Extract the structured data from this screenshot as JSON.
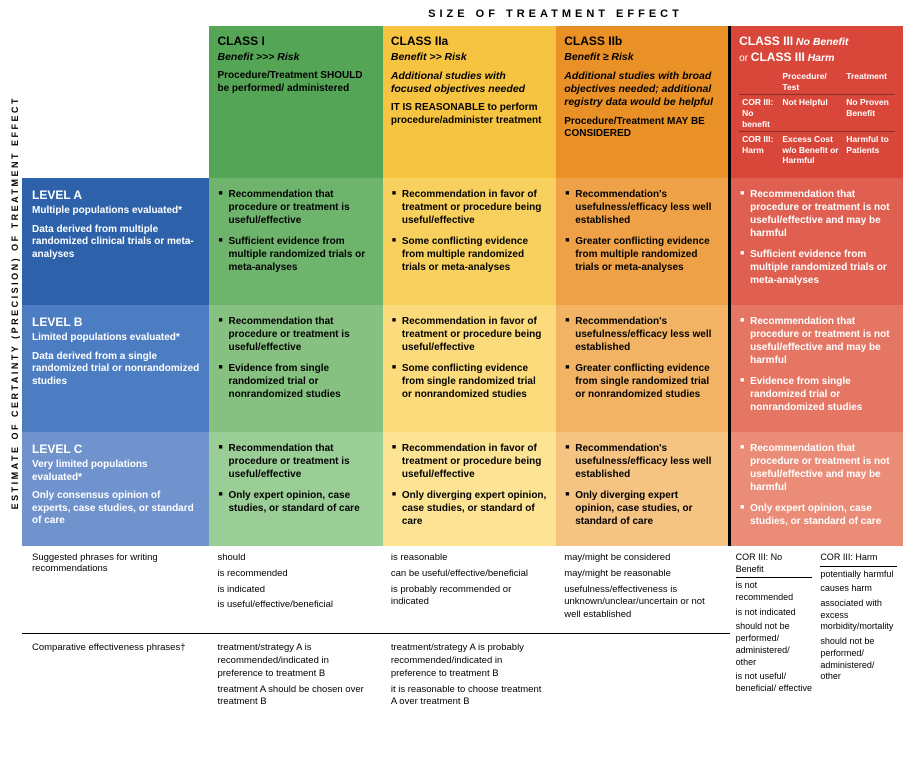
{
  "axes": {
    "top_title": "SIZE OF TREATMENT EFFECT",
    "left_title": "ESTIMATE OF CERTAINTY (PRECISION) OF TREATMENT EFFECT"
  },
  "colors": {
    "class1_header": "#55a556",
    "class2a_header": "#f6c441",
    "class2b_header": "#e99026",
    "class3_header": "#d9473b",
    "level_a": "#2d62ab",
    "level_b": "#4c7cc1",
    "level_c": "#7093cd"
  },
  "classes": {
    "c1": {
      "title": "CLASS I",
      "relation": "Benefit >>> Risk",
      "body": "Procedure/Treatment <b>SHOULD</b> be performed/ administered"
    },
    "c2a": {
      "title": "CLASS IIa",
      "relation": "Benefit >> Risk",
      "extra": "Additional studies with focused objectives needed",
      "body": "<b>IT IS REASONABLE</b> to perform procedure/administer treatment"
    },
    "c2b": {
      "title": "CLASS IIb",
      "relation": "Benefit ≥ Risk",
      "extra": "Additional studies with broad objectives needed; additional registry data would be helpful",
      "body": "Procedure/Treatment <b>MAY BE CONSIDERED</b>"
    },
    "c3": {
      "title_a": "CLASS III",
      "title_a_suffix": "No Benefit",
      "or": "or",
      "title_b": "CLASS III",
      "title_b_suffix": "Harm",
      "sub": {
        "h_proc": "Procedure/ Test",
        "h_treat": "Treatment",
        "r1_label": "COR III: No benefit",
        "r1_proc": "Not Helpful",
        "r1_treat": "No Proven Benefit",
        "r2_label": "COR III: Harm",
        "r2_proc": "Excess Cost w/o Benefit or Harmful",
        "r2_treat": "Harmful to Patients"
      }
    }
  },
  "levels": {
    "a": {
      "title": "LEVEL A",
      "sub": "Multiple populations evaluated*",
      "desc": "Data derived from multiple randomized clinical trials or meta-analyses"
    },
    "b": {
      "title": "LEVEL B",
      "sub": "Limited populations evaluated*",
      "desc": "Data derived from a single randomized trial or nonrandomized studies"
    },
    "c": {
      "title": "LEVEL C",
      "sub": "Very limited populations evaluated*",
      "desc": "Only consensus opinion of experts, case studies, or standard of care"
    }
  },
  "cells": {
    "a": {
      "c1": [
        "Recommendation that procedure or treatment is useful/effective",
        "Sufficient evidence from multiple randomized trials or meta-analyses"
      ],
      "c2a": [
        "Recommendation in favor of treatment or procedure being useful/effective",
        "Some conflicting evidence from multiple randomized trials or meta-analyses"
      ],
      "c2b": [
        "Recommendation's usefulness/efficacy less well established",
        "Greater conflicting evidence from multiple randomized trials or meta-analyses"
      ],
      "c3": [
        "Recommendation that procedure or treatment is not useful/effective and may be harmful",
        "Sufficient evidence from multiple randomized trials or meta-analyses"
      ]
    },
    "b": {
      "c1": [
        "Recommendation that procedure or treatment is useful/effective",
        "Evidence from single randomized trial or nonrandomized studies"
      ],
      "c2a": [
        "Recommendation in favor of treatment or procedure being useful/effective",
        "Some conflicting evidence from single randomized trial or nonrandomized studies"
      ],
      "c2b": [
        "Recommendation's usefulness/efficacy less well established",
        "Greater conflicting evidence from single randomized trial or nonrandomized studies"
      ],
      "c3": [
        "Recommendation that procedure or treatment is not useful/effective and may be harmful",
        "Evidence from single randomized trial or nonrandomized studies"
      ]
    },
    "c": {
      "c1": [
        "Recommendation that procedure or treatment is useful/effective",
        "Only expert opinion, case studies, or standard of care"
      ],
      "c2a": [
        "Recommendation in favor of treatment or procedure being useful/effective",
        "Only diverging expert opinion, case studies, or standard of care"
      ],
      "c2b": [
        "Recommendation's usefulness/efficacy less well established",
        "Only diverging expert opinion, case studies, or standard of care"
      ],
      "c3": [
        "Recommendation that procedure or treatment is not useful/effective and may be harmful",
        "Only expert opinion, case studies, or standard of care"
      ]
    }
  },
  "footer": {
    "phrases_label": "Suggested phrases for writing recommendations",
    "comparative_label": "Comparative effectiveness phrases†",
    "phrases": {
      "c1": [
        "should",
        "is recommended",
        "is indicated",
        "is useful/effective/beneficial"
      ],
      "c2a": [
        "is reasonable",
        "can be useful/effective/beneficial",
        "is probably recommended or indicated"
      ],
      "c2b": [
        "may/might be considered",
        "may/might be reasonable",
        "usefulness/effectiveness is unknown/unclear/uncertain or not well established"
      ]
    },
    "comparative": {
      "c1": [
        "treatment/strategy A is recommended/indicated in preference to treatment B",
        "treatment A should be chosen over treatment B"
      ],
      "c2a": [
        "treatment/strategy A is probably recommended/indicated in preference to treatment B",
        "it is reasonable to choose treatment A over treatment B"
      ]
    },
    "c3": {
      "nobenefit_hdr": "COR III: No Benefit",
      "harm_hdr": "COR III: Harm",
      "nobenefit": [
        "is not recommended",
        "is not indicated",
        "should not be performed/ administered/ other",
        "is not useful/ beneficial/ effective"
      ],
      "harm": [
        "potentially harmful",
        "causes harm",
        "associated with excess morbidity/mortality",
        "should not be performed/ administered/ other"
      ]
    }
  }
}
